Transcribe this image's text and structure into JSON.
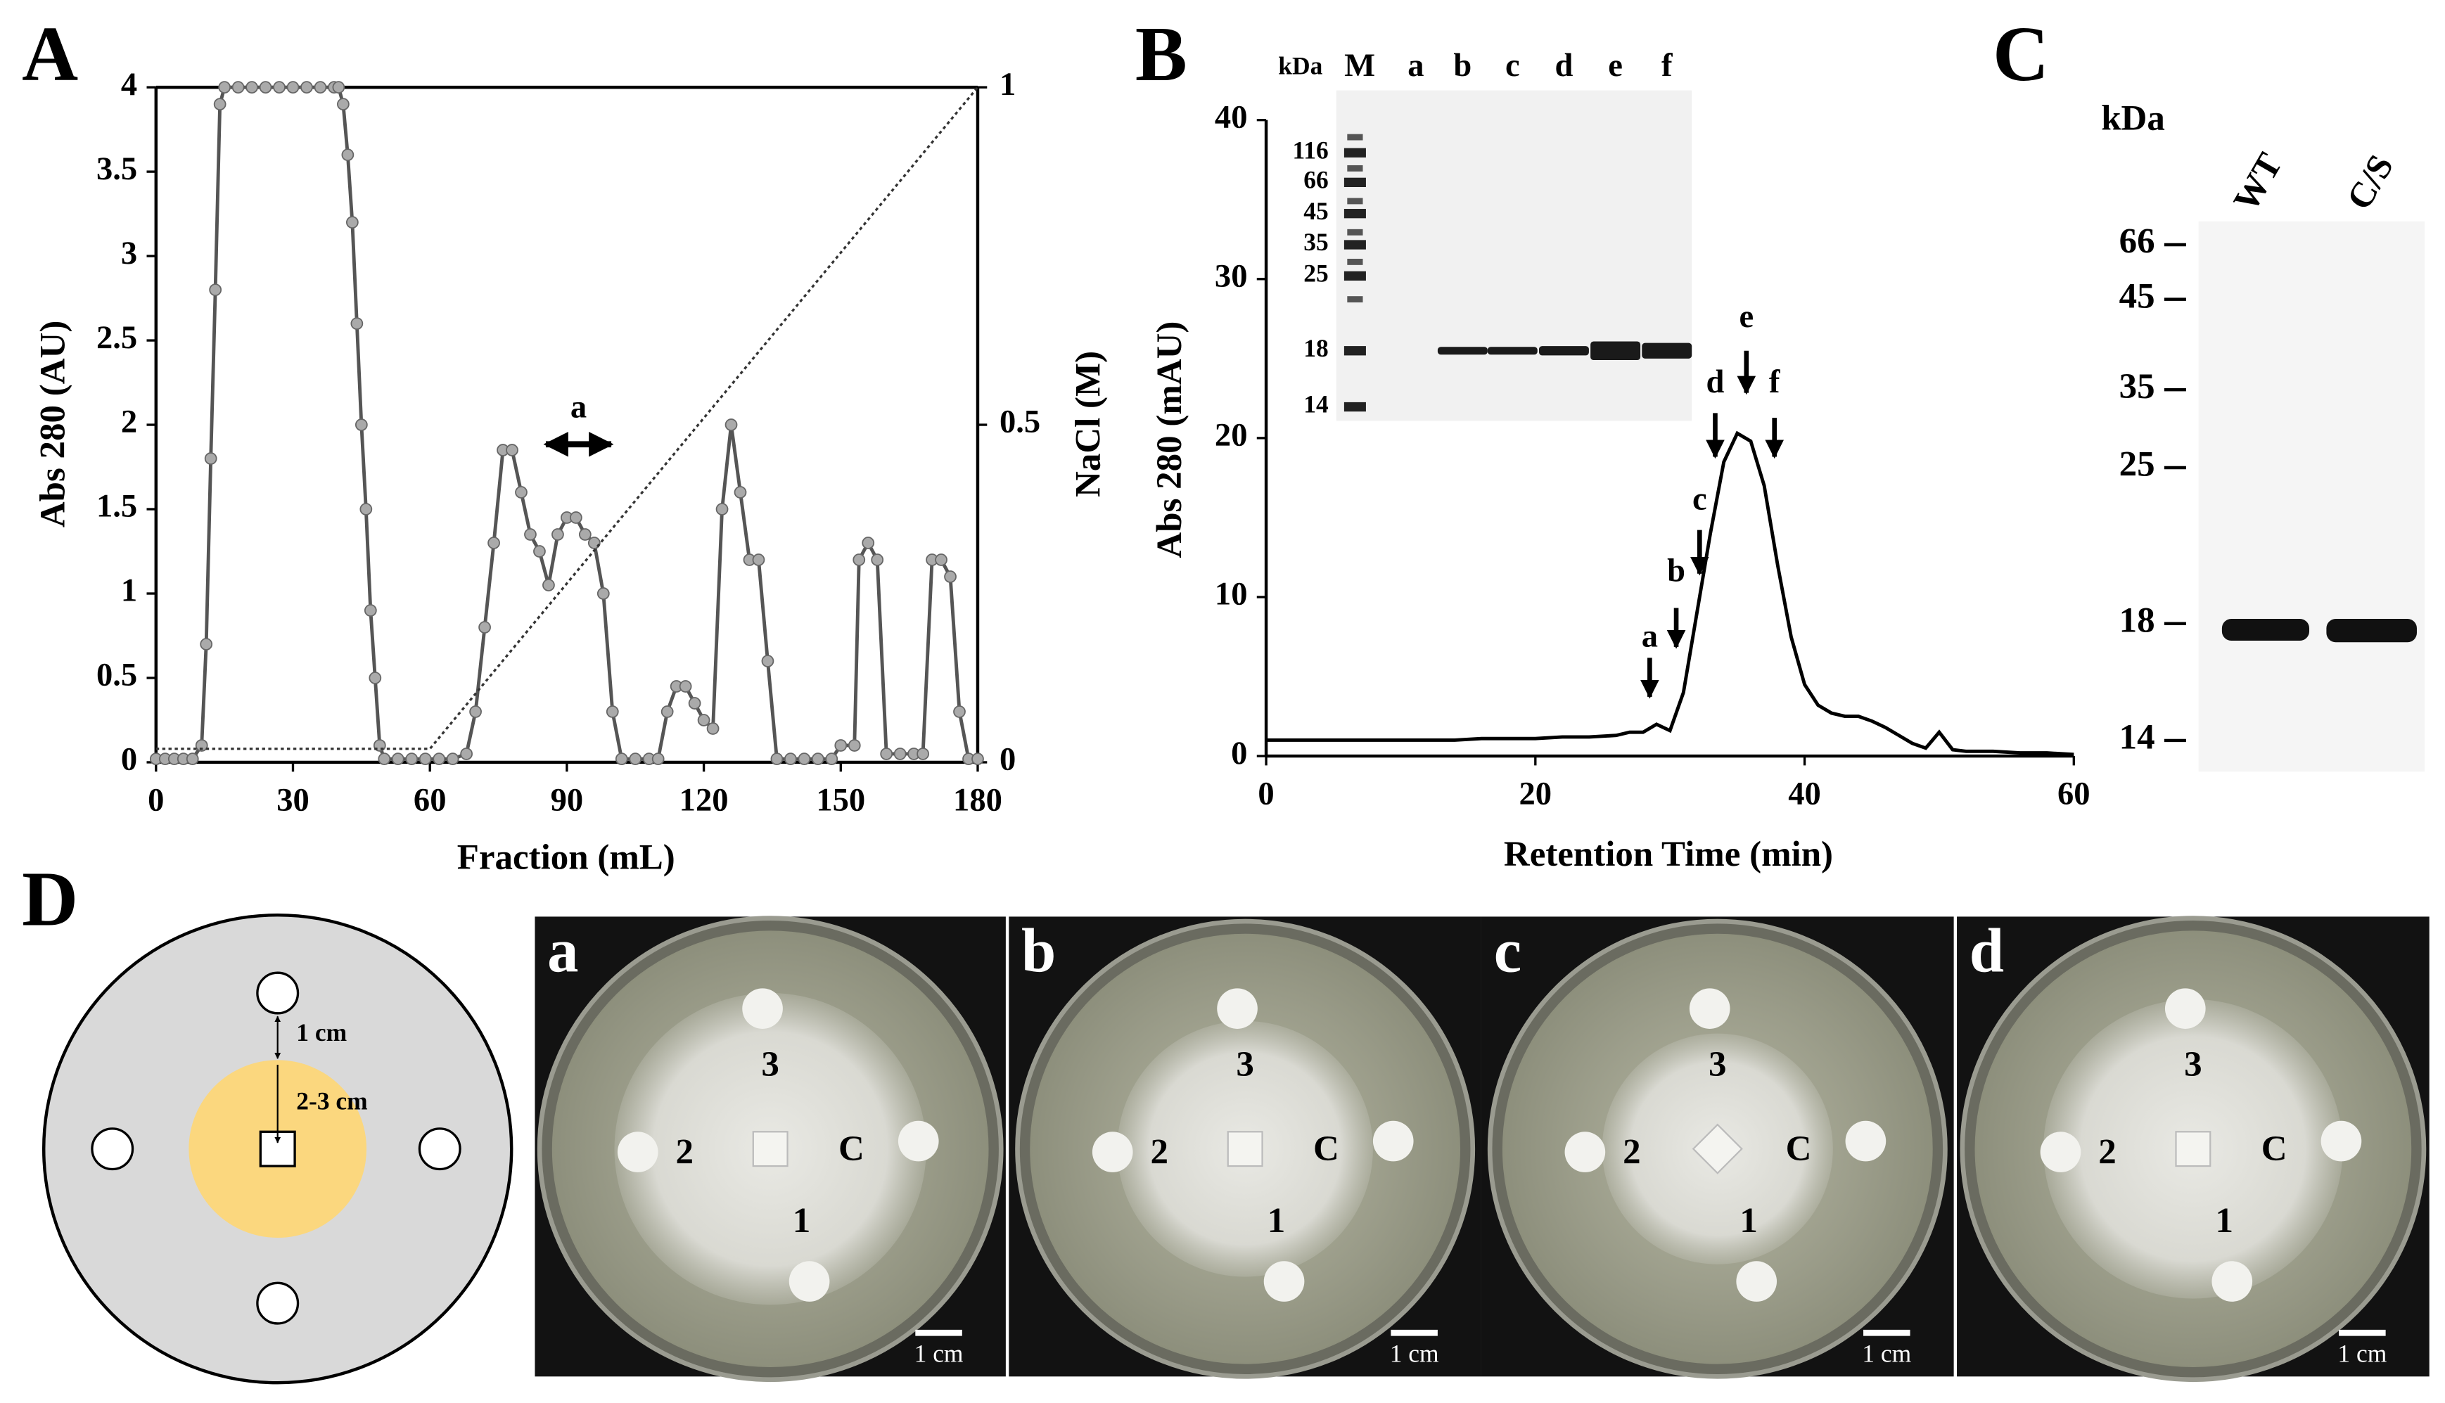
{
  "chart_data": [
    {
      "type": "line",
      "panel_label": "A",
      "xlabel": "Fraction (mL)",
      "ylabel": "Abs 280 (AU)",
      "y2label": "NaCl (M)",
      "annotation": "a",
      "xlim": [
        0,
        180
      ],
      "xticks": [
        0,
        30,
        60,
        90,
        120,
        150,
        180
      ],
      "ylim": [
        0,
        4
      ],
      "yticks": [
        0,
        0.5,
        1,
        1.5,
        2,
        2.5,
        3,
        3.5,
        4
      ],
      "y2lim": [
        0,
        1
      ],
      "y2ticks": [
        0,
        0.5,
        1
      ],
      "series": [
        {
          "name": "Abs 280",
          "color": "#555555",
          "marker_color": "#aaaaaa",
          "marker": true,
          "x": [
            0,
            2,
            4,
            6,
            8,
            10,
            11,
            12,
            13,
            14,
            15,
            18,
            21,
            24,
            27,
            30,
            33,
            36,
            39,
            40,
            41,
            42,
            43,
            44,
            45,
            46,
            47,
            48,
            49,
            50,
            53,
            56,
            59,
            62,
            65,
            68,
            70,
            72,
            74,
            76,
            78,
            80,
            82,
            84,
            86,
            88,
            90,
            92,
            94,
            96,
            98,
            100,
            102,
            105,
            108,
            110,
            112,
            114,
            116,
            118,
            120,
            122,
            124,
            126,
            128,
            130,
            132,
            134,
            136,
            139,
            142,
            145,
            148,
            150,
            153,
            154,
            156,
            158,
            160,
            163,
            166,
            168,
            170,
            172,
            174,
            176,
            178,
            180
          ],
          "values": [
            0.02,
            0.02,
            0.02,
            0.02,
            0.02,
            0.1,
            0.7,
            1.8,
            2.8,
            3.9,
            4,
            4,
            4,
            4,
            4,
            4,
            4,
            4,
            4,
            4,
            3.9,
            3.6,
            3.2,
            2.6,
            2,
            1.5,
            0.9,
            0.5,
            0.1,
            0.02,
            0.02,
            0.02,
            0.02,
            0.02,
            0.02,
            0.05,
            0.3,
            0.8,
            1.3,
            1.85,
            1.85,
            1.6,
            1.35,
            1.25,
            1.05,
            1.35,
            1.45,
            1.45,
            1.35,
            1.3,
            1,
            0.3,
            0.02,
            0.02,
            0.02,
            0.02,
            0.3,
            0.45,
            0.45,
            0.35,
            0.25,
            0.2,
            1.5,
            2,
            1.6,
            1.2,
            1.2,
            0.6,
            0.02,
            0.02,
            0.02,
            0.02,
            0.02,
            0.1,
            0.1,
            1.2,
            1.3,
            1.2,
            0.05,
            0.05,
            0.05,
            0.05,
            1.2,
            1.2,
            1.1,
            0.3,
            0.02,
            0.02
          ]
        },
        {
          "name": "NaCl",
          "color": "#333333",
          "line_style": "dotted",
          "axis": "y2",
          "x": [
            0,
            60,
            180
          ],
          "values": [
            0.02,
            0.02,
            1
          ]
        }
      ]
    },
    {
      "type": "line",
      "panel_label": "B",
      "xlabel": "Retention Time (min)",
      "ylabel": "Abs 280 (mAU)",
      "peak_labels": [
        "a",
        "b",
        "c",
        "d",
        "e",
        "f"
      ],
      "xlim": [
        0,
        60
      ],
      "xticks": [
        0,
        20,
        40,
        60
      ],
      "ylim": [
        0,
        40
      ],
      "yticks": [
        0,
        10,
        20,
        30,
        40
      ],
      "series": [
        {
          "name": "Abs 280",
          "color": "#000000",
          "x": [
            0,
            5,
            10,
            14,
            16,
            18,
            20,
            22,
            24,
            26,
            27,
            28,
            29,
            30,
            31,
            32,
            33,
            34,
            35,
            36,
            37,
            38,
            39,
            40,
            41,
            42,
            43,
            44,
            45,
            46,
            47,
            48,
            49,
            50,
            51,
            52,
            54,
            56,
            58,
            60
          ],
          "values": [
            1,
            1,
            1,
            1,
            1.1,
            1.1,
            1.1,
            1.2,
            1.2,
            1.3,
            1.5,
            1.5,
            2,
            1.6,
            4,
            9,
            14,
            18.5,
            20.3,
            19.8,
            17,
            12,
            7.5,
            4.5,
            3.2,
            2.7,
            2.5,
            2.5,
            2.2,
            1.8,
            1.3,
            0.8,
            0.5,
            1.5,
            0.4,
            0.3,
            0.3,
            0.2,
            0.2,
            0.1
          ]
        }
      ]
    }
  ],
  "gel_B": {
    "unit": "kDa",
    "lanes": [
      "M",
      "a",
      "b",
      "c",
      "d",
      "e",
      "f"
    ],
    "markers": [
      116,
      66,
      45,
      35,
      25,
      18,
      14
    ]
  },
  "blot_C": {
    "panel_label": "C",
    "unit": "kDa",
    "lanes": [
      "WT",
      "C/S"
    ],
    "markers": [
      66,
      45,
      35,
      25,
      18,
      14
    ]
  },
  "panel_D": {
    "panel_label": "D",
    "schematic": {
      "spacing": "1 cm",
      "radius": "2-3 cm"
    },
    "plates": [
      "a",
      "b",
      "c",
      "d"
    ],
    "disc_labels": [
      "1",
      "2",
      "3",
      "C"
    ],
    "scale": "1 cm"
  }
}
